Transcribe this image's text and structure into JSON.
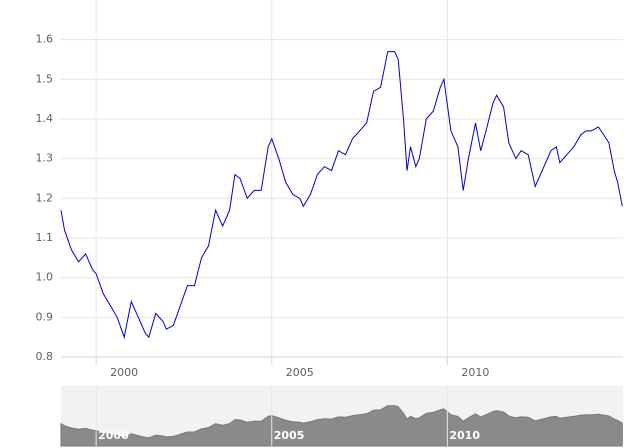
{
  "chart_data": {
    "type": "line",
    "color": "#0000cc",
    "grid": true,
    "xlim": [
      1999.0,
      2015.0
    ],
    "xticks": [
      2000,
      2005,
      2010
    ],
    "ylim": [
      0.8,
      1.7
    ],
    "yticks": [
      0.8,
      0.9,
      {
        "value": 1,
        "label": "1.0"
      },
      1.1,
      1.2,
      1.3,
      1.4,
      1.5,
      1.6
    ],
    "x": [
      1999.0,
      1999.1,
      1999.3,
      1999.5,
      1999.7,
      1999.9,
      2000.0,
      2000.2,
      2000.4,
      2000.6,
      2000.8,
      2001.0,
      2001.2,
      2001.4,
      2001.5,
      2001.7,
      2001.9,
      2002.0,
      2002.2,
      2002.4,
      2002.6,
      2002.8,
      2003.0,
      2003.2,
      2003.4,
      2003.6,
      2003.8,
      2003.95,
      2004.1,
      2004.3,
      2004.5,
      2004.7,
      2004.9,
      2005.0,
      2005.2,
      2005.4,
      2005.6,
      2005.8,
      2005.9,
      2006.1,
      2006.3,
      2006.5,
      2006.7,
      2006.9,
      2007.1,
      2007.3,
      2007.5,
      2007.7,
      2007.9,
      2008.1,
      2008.3,
      2008.5,
      2008.6,
      2008.75,
      2008.85,
      2008.95,
      2009.1,
      2009.2,
      2009.4,
      2009.6,
      2009.8,
      2009.9,
      2010.1,
      2010.3,
      2010.45,
      2010.6,
      2010.8,
      2010.95,
      2011.1,
      2011.3,
      2011.4,
      2011.6,
      2011.75,
      2011.95,
      2012.1,
      2012.3,
      2012.5,
      2012.6,
      2012.8,
      2012.95,
      2013.1,
      2013.2,
      2013.4,
      2013.6,
      2013.8,
      2013.95,
      2014.1,
      2014.3,
      2014.45,
      2014.6,
      2014.75,
      2014.85,
      2014.98
    ],
    "values": [
      1.17,
      1.12,
      1.07,
      1.04,
      1.06,
      1.02,
      1.01,
      0.96,
      0.93,
      0.9,
      0.85,
      0.94,
      0.9,
      0.86,
      0.85,
      0.91,
      0.89,
      0.87,
      0.88,
      0.93,
      0.98,
      0.98,
      1.05,
      1.08,
      1.17,
      1.13,
      1.17,
      1.26,
      1.25,
      1.2,
      1.22,
      1.22,
      1.33,
      1.35,
      1.3,
      1.24,
      1.21,
      1.2,
      1.18,
      1.21,
      1.26,
      1.28,
      1.27,
      1.32,
      1.31,
      1.35,
      1.37,
      1.39,
      1.47,
      1.48,
      1.57,
      1.57,
      1.55,
      1.4,
      1.27,
      1.33,
      1.28,
      1.3,
      1.4,
      1.42,
      1.48,
      1.5,
      1.37,
      1.33,
      1.22,
      1.3,
      1.39,
      1.32,
      1.37,
      1.44,
      1.46,
      1.43,
      1.34,
      1.3,
      1.32,
      1.31,
      1.23,
      1.25,
      1.29,
      1.32,
      1.33,
      1.29,
      1.31,
      1.33,
      1.36,
      1.37,
      1.37,
      1.38,
      1.36,
      1.34,
      1.27,
      1.24,
      1.18
    ]
  }
}
